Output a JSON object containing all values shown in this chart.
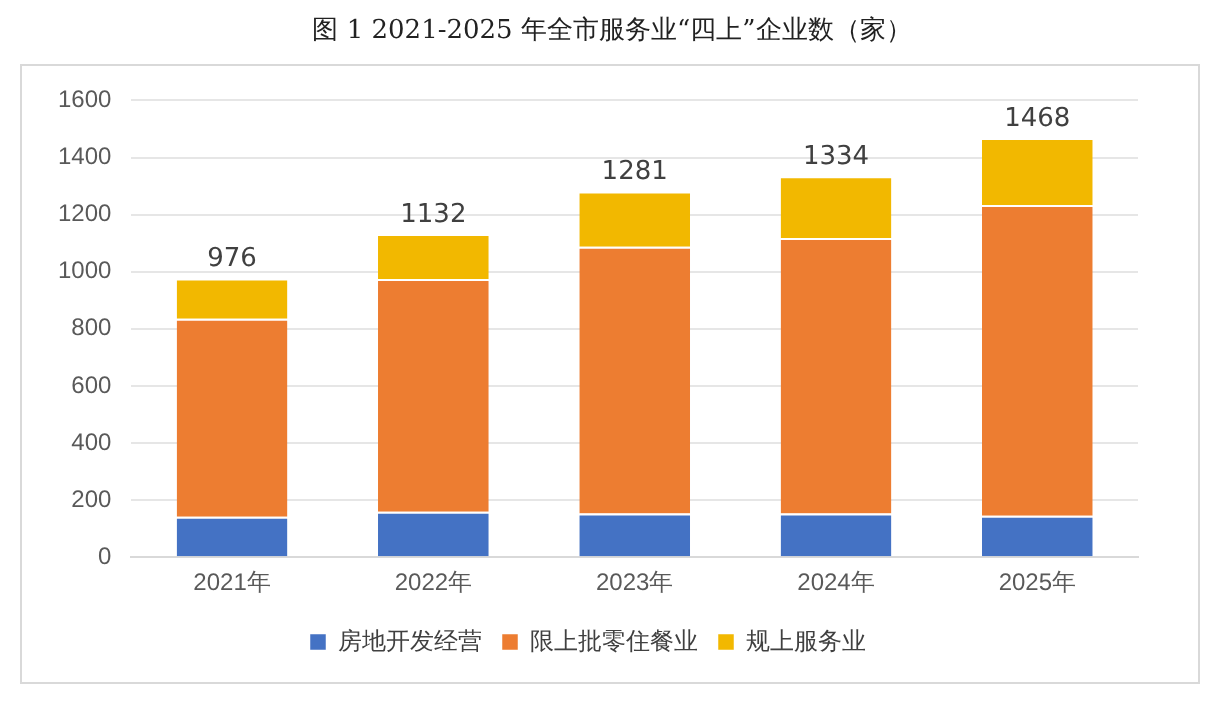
{
  "chart_data": {
    "type": "bar",
    "title": "图 1 2021-2025 年全市服务业“四上”企业数（家）",
    "categories": [
      "2021年",
      "2022年",
      "2023年",
      "2024年",
      "2025年"
    ],
    "stacked": true,
    "series": [
      {
        "name": "房地开发经营",
        "color": "#4472c4",
        "values": [
          142,
          159,
          153,
          153,
          145
        ]
      },
      {
        "name": "限上批零住餐业",
        "color": "#ed7d31",
        "values": [
          693,
          815,
          934,
          965,
          1089
        ]
      },
      {
        "name": "规上服务业",
        "color": "#f2b800",
        "values": [
          141,
          158,
          194,
          216,
          234
        ]
      }
    ],
    "totals": [
      "976",
      "1132",
      "1281",
      "1334",
      "1468"
    ],
    "ylim": [
      0,
      1600
    ],
    "yticks": [
      0,
      200,
      400,
      600,
      800,
      1000,
      1200,
      1400,
      1600
    ],
    "grid": "y",
    "legend": "bottom"
  }
}
